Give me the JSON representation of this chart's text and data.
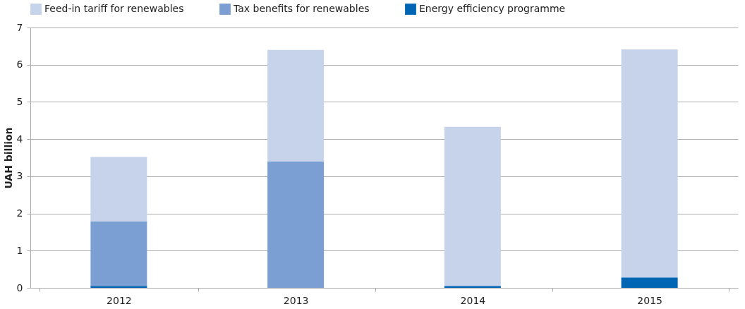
{
  "chart_data": {
    "type": "bar",
    "stacked": true,
    "ylabel": "UAH billion",
    "categories": [
      "2012",
      "2013",
      "2014",
      "2015"
    ],
    "series": [
      {
        "name": "Energy efficiency programme",
        "color": "#0066b3",
        "values": [
          0.05,
          0,
          0.05,
          0.28
        ]
      },
      {
        "name": "Tax benefits for renewables",
        "color": "#7b9fd2",
        "values": [
          1.74,
          3.4,
          0,
          0
        ]
      },
      {
        "name": "Feed-in tariff for renewables",
        "color": "#c6d3ea",
        "values": [
          1.73,
          3.0,
          4.28,
          6.13
        ]
      }
    ],
    "ylim": [
      0,
      7
    ],
    "yticks": [
      0,
      1,
      2,
      3,
      4,
      5,
      6,
      7
    ],
    "grid": "y",
    "legend": "top"
  }
}
